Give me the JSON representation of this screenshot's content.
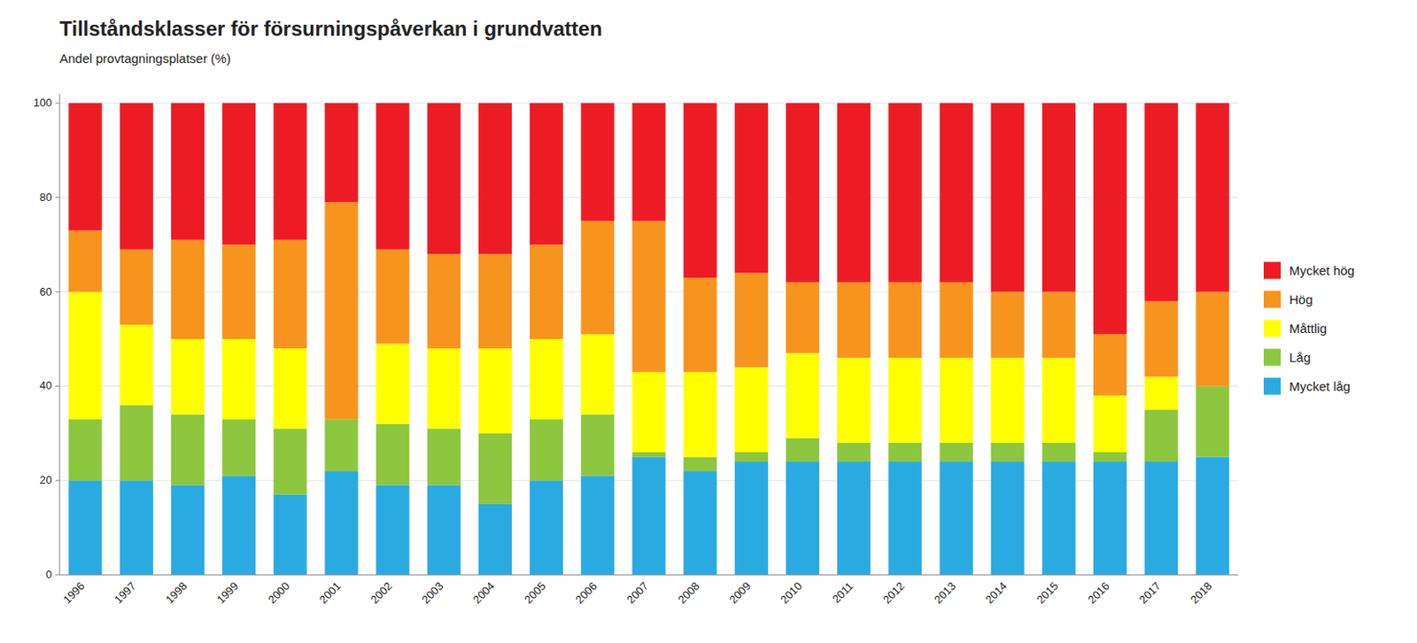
{
  "chart_data": {
    "type": "bar",
    "stacked": true,
    "title": "Tillståndsklasser för försurningspåverkan i grundvatten",
    "subtitle": "Andel provtagningsplatser (%)",
    "categories": [
      "1996",
      "1997",
      "1998",
      "1999",
      "2000",
      "2001",
      "2002",
      "2003",
      "2004",
      "2005",
      "2006",
      "2007",
      "2008",
      "2009",
      "2010",
      "2011",
      "2012",
      "2013",
      "2014",
      "2015",
      "2016",
      "2017",
      "2018"
    ],
    "series": [
      {
        "name": "Mycket låg",
        "color": "#29ABE2",
        "values": [
          20,
          20,
          19,
          21,
          17,
          22,
          19,
          19,
          15,
          20,
          21,
          25,
          22,
          24,
          24,
          24,
          24,
          24,
          24,
          24,
          24,
          24,
          25
        ]
      },
      {
        "name": "Låg",
        "color": "#8DC63F",
        "values": [
          13,
          16,
          15,
          12,
          14,
          11,
          13,
          12,
          15,
          13,
          13,
          1,
          3,
          2,
          5,
          4,
          4,
          4,
          4,
          4,
          2,
          11,
          15
        ]
      },
      {
        "name": "Måttlig",
        "color": "#FFFF00",
        "values": [
          27,
          17,
          16,
          17,
          17,
          0,
          17,
          17,
          18,
          17,
          17,
          17,
          18,
          18,
          18,
          18,
          18,
          18,
          18,
          18,
          12,
          7,
          0
        ]
      },
      {
        "name": "Hög",
        "color": "#F7941D",
        "values": [
          13,
          16,
          21,
          20,
          23,
          46,
          20,
          20,
          20,
          20,
          24,
          32,
          20,
          20,
          15,
          16,
          16,
          16,
          14,
          14,
          13,
          16,
          20
        ]
      },
      {
        "name": "Mycket hög",
        "color": "#ED1C24",
        "values": [
          27,
          31,
          29,
          30,
          29,
          21,
          31,
          32,
          32,
          30,
          25,
          25,
          37,
          36,
          38,
          38,
          38,
          38,
          40,
          40,
          49,
          42,
          40
        ]
      }
    ],
    "ylim": [
      0,
      102
    ],
    "yticks": [
      0,
      20,
      40,
      60,
      80,
      100
    ],
    "grid": true,
    "legend": "right"
  }
}
